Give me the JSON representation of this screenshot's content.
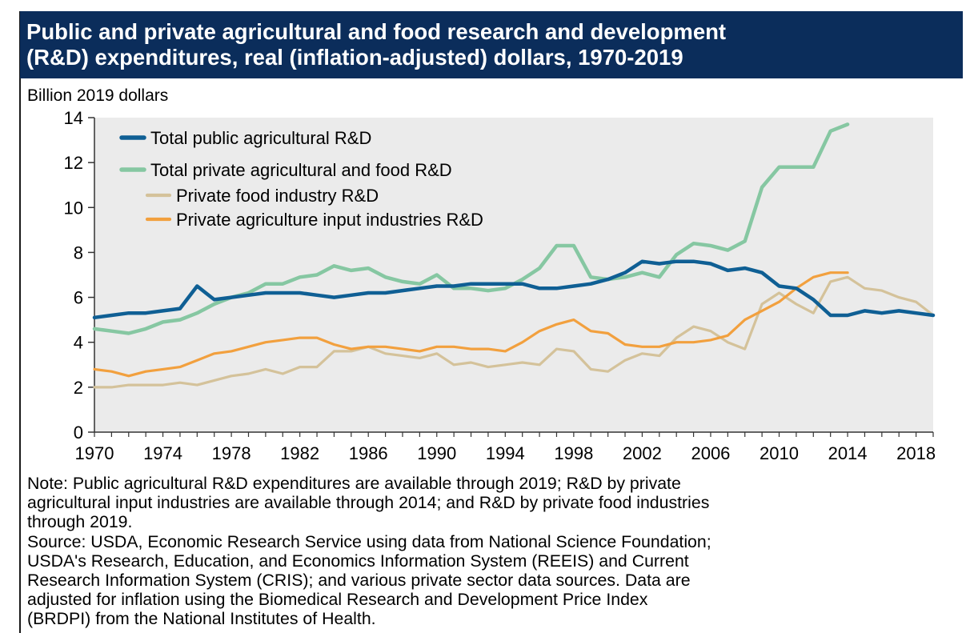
{
  "header": {
    "title_line1": "Public and private agricultural and food research and development",
    "title_line2": "(R&D) expenditures, real (inflation-adjusted) dollars, 1970-2019"
  },
  "colors": {
    "title_bg": "#0b2d5b",
    "plot_bg": "#ebebeb",
    "public": "#0f5f94",
    "private_total": "#86c7a2",
    "food": "#d4c29a",
    "input": "#f2a03e"
  },
  "chart_data": {
    "type": "line",
    "title": "Public and private agricultural and food research and development (R&D) expenditures, real (inflation-adjusted) dollars, 1970-2019",
    "ylabel": "Billion 2019 dollars",
    "xlabel": "",
    "ylim": [
      0,
      14
    ],
    "xlim": [
      1970,
      2019
    ],
    "yticks": [
      "0",
      "2",
      "4",
      "6",
      "8",
      "10",
      "12",
      "14"
    ],
    "xticks": [
      "1970",
      "1974",
      "1978",
      "1982",
      "1986",
      "1990",
      "1994",
      "1998",
      "2002",
      "2006",
      "2010",
      "2014",
      "2018"
    ],
    "grid": false,
    "legend_position": "top-left",
    "series": [
      {
        "name": "Total public agricultural R&D",
        "x": [
          1970,
          1971,
          1972,
          1973,
          1974,
          1975,
          1976,
          1977,
          1978,
          1979,
          1980,
          1981,
          1982,
          1983,
          1984,
          1985,
          1986,
          1987,
          1988,
          1989,
          1990,
          1991,
          1992,
          1993,
          1994,
          1995,
          1996,
          1997,
          1998,
          1999,
          2000,
          2001,
          2002,
          2003,
          2004,
          2005,
          2006,
          2007,
          2008,
          2009,
          2010,
          2011,
          2012,
          2013,
          2014,
          2015,
          2016,
          2017,
          2018,
          2019
        ],
        "values": [
          5.1,
          5.2,
          5.3,
          5.3,
          5.4,
          5.5,
          6.5,
          5.9,
          6.0,
          6.1,
          6.2,
          6.2,
          6.2,
          6.1,
          6.0,
          6.1,
          6.2,
          6.2,
          6.3,
          6.4,
          6.5,
          6.5,
          6.6,
          6.6,
          6.6,
          6.6,
          6.4,
          6.4,
          6.5,
          6.6,
          6.8,
          7.1,
          7.6,
          7.5,
          7.6,
          7.6,
          7.5,
          7.2,
          7.3,
          7.1,
          6.5,
          6.4,
          5.9,
          5.2,
          5.2,
          5.4,
          5.3,
          5.4,
          5.3,
          5.2
        ]
      },
      {
        "name": "Total private agricultural and food R&D",
        "x": [
          1970,
          1971,
          1972,
          1973,
          1974,
          1975,
          1976,
          1977,
          1978,
          1979,
          1980,
          1981,
          1982,
          1983,
          1984,
          1985,
          1986,
          1987,
          1988,
          1989,
          1990,
          1991,
          1992,
          1993,
          1994,
          1995,
          1996,
          1997,
          1998,
          1999,
          2000,
          2001,
          2002,
          2003,
          2004,
          2005,
          2006,
          2007,
          2008,
          2009,
          2010,
          2011,
          2012,
          2013,
          2014
        ],
        "values": [
          4.6,
          4.5,
          4.4,
          4.6,
          4.9,
          5.0,
          5.3,
          5.7,
          6.0,
          6.2,
          6.6,
          6.6,
          6.9,
          7.0,
          7.4,
          7.2,
          7.3,
          6.9,
          6.7,
          6.6,
          7.0,
          6.4,
          6.4,
          6.3,
          6.4,
          6.8,
          7.3,
          8.3,
          8.3,
          6.9,
          6.8,
          6.9,
          7.1,
          6.9,
          7.9,
          8.4,
          8.3,
          8.1,
          8.5,
          10.9,
          11.8,
          11.8,
          11.8,
          13.4,
          13.7
        ]
      },
      {
        "name": "Private food industry R&D",
        "x": [
          1970,
          1971,
          1972,
          1973,
          1974,
          1975,
          1976,
          1977,
          1978,
          1979,
          1980,
          1981,
          1982,
          1983,
          1984,
          1985,
          1986,
          1987,
          1988,
          1989,
          1990,
          1991,
          1992,
          1993,
          1994,
          1995,
          1996,
          1997,
          1998,
          1999,
          2000,
          2001,
          2002,
          2003,
          2004,
          2005,
          2006,
          2007,
          2008,
          2009,
          2010,
          2011,
          2012,
          2013,
          2014,
          2015,
          2016,
          2017,
          2018,
          2019
        ],
        "values": [
          2.0,
          2.0,
          2.1,
          2.1,
          2.1,
          2.2,
          2.1,
          2.3,
          2.5,
          2.6,
          2.8,
          2.6,
          2.9,
          2.9,
          3.6,
          3.6,
          3.8,
          3.5,
          3.4,
          3.3,
          3.5,
          3.0,
          3.1,
          2.9,
          3.0,
          3.1,
          3.0,
          3.7,
          3.6,
          2.8,
          2.7,
          3.2,
          3.5,
          3.4,
          4.2,
          4.7,
          4.5,
          4.0,
          3.7,
          5.7,
          6.2,
          5.7,
          5.3,
          6.7,
          6.9,
          6.4,
          6.3,
          6.0,
          5.8,
          5.2
        ]
      },
      {
        "name": "Private agriculture input industries R&D",
        "x": [
          1970,
          1971,
          1972,
          1973,
          1974,
          1975,
          1976,
          1977,
          1978,
          1979,
          1980,
          1981,
          1982,
          1983,
          1984,
          1985,
          1986,
          1987,
          1988,
          1989,
          1990,
          1991,
          1992,
          1993,
          1994,
          1995,
          1996,
          1997,
          1998,
          1999,
          2000,
          2001,
          2002,
          2003,
          2004,
          2005,
          2006,
          2007,
          2008,
          2009,
          2010,
          2011,
          2012,
          2013,
          2014
        ],
        "values": [
          2.8,
          2.7,
          2.5,
          2.7,
          2.8,
          2.9,
          3.2,
          3.5,
          3.6,
          3.8,
          4.0,
          4.1,
          4.2,
          4.2,
          3.9,
          3.7,
          3.8,
          3.8,
          3.7,
          3.6,
          3.8,
          3.8,
          3.7,
          3.7,
          3.6,
          4.0,
          4.5,
          4.8,
          5.0,
          4.5,
          4.4,
          3.9,
          3.8,
          3.8,
          4.0,
          4.0,
          4.1,
          4.3,
          5.0,
          5.4,
          5.8,
          6.4,
          6.9,
          7.1,
          7.1
        ]
      }
    ]
  },
  "notes": {
    "line1": "Note: Public agricultural R&D expenditures are available through 2019; R&D by private",
    "line2": "agricultural input industries are available through 2014; and R&D by private food industries",
    "line3": "through 2019.",
    "line4": "Source: USDA, Economic Research Service using data from National Science Foundation;",
    "line5": "USDA's Research, Education, and Economics Information System (REEIS) and Current",
    "line6": "Research Information System (CRIS); and various private sector data sources. Data are",
    "line7": "adjusted for inflation using the Biomedical Research and Development Price Index",
    "line8": "(BRDPI) from the National Institutes of Health."
  }
}
